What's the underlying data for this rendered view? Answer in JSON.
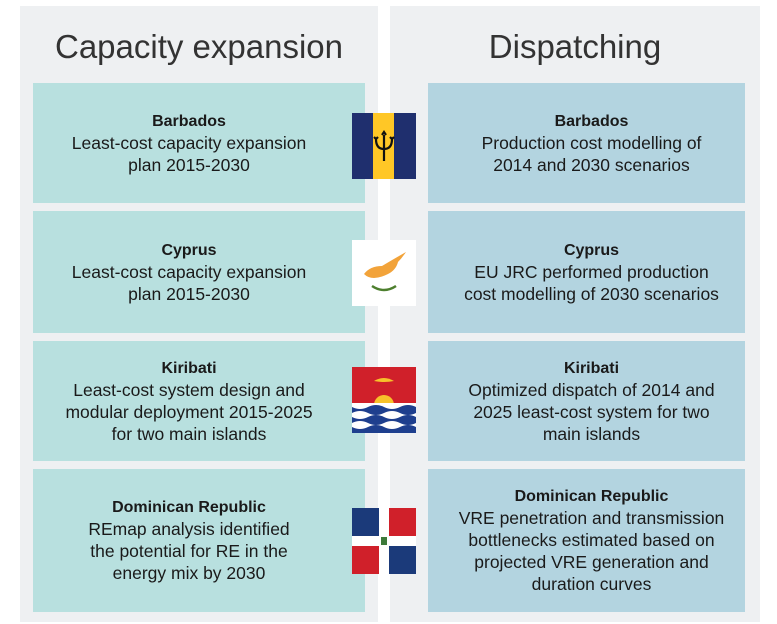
{
  "headers": {
    "left": "Capacity expansion",
    "right": "Dispatching"
  },
  "rows": [
    {
      "capacity": {
        "country": "Barbados",
        "lines": [
          "Least-cost capacity expansion",
          "plan 2015-2030"
        ]
      },
      "dispatch": {
        "country": "Barbados",
        "lines": [
          "Production cost modelling of",
          "2014 and 2030 scenarios"
        ]
      }
    },
    {
      "capacity": {
        "country": "Cyprus",
        "lines": [
          "Least-cost capacity expansion",
          "plan 2015-2030"
        ]
      },
      "dispatch": {
        "country": "Cyprus",
        "lines": [
          "EU JRC performed production",
          "cost modelling of 2030 scenarios"
        ]
      }
    },
    {
      "capacity": {
        "country": "Kiribati",
        "lines": [
          "Least-cost system design and",
          "modular deployment 2015-2025",
          "for two main islands"
        ]
      },
      "dispatch": {
        "country": "Kiribati",
        "lines": [
          "Optimized dispatch of 2014 and",
          "2025 least-cost system for two",
          "main islands"
        ]
      }
    },
    {
      "capacity": {
        "country": "Dominican Republic",
        "lines": [
          "REmap analysis identified",
          "the potential for RE in the",
          "energy mix by 2030"
        ]
      },
      "dispatch": {
        "country": "Dominican Republic",
        "lines": [
          "VRE penetration and transmission",
          "bottlenecks estimated based on",
          "projected VRE generation and",
          "duration curves"
        ]
      }
    }
  ]
}
